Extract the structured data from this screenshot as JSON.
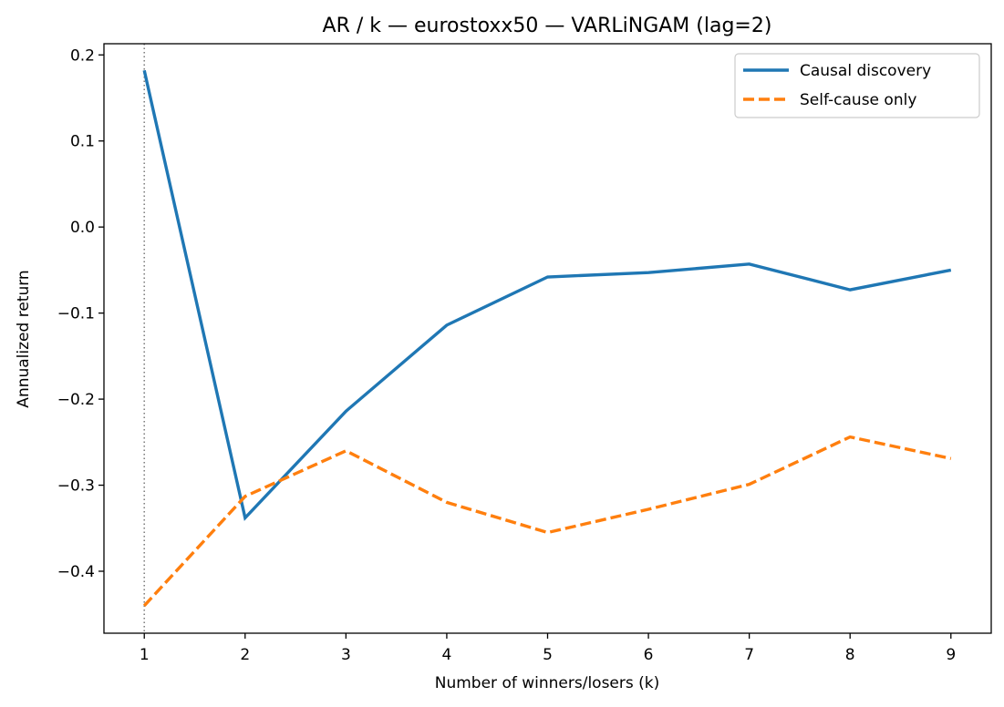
{
  "chart_data": {
    "type": "line",
    "title": "AR / k — eurostoxx50 — VARLiNGAM (lag=2)",
    "xlabel": "Number of winners/losers (k)",
    "ylabel": "Annualized return",
    "x": [
      1,
      2,
      3,
      4,
      5,
      6,
      7,
      8,
      9
    ],
    "xlim": [
      0.6,
      9.4
    ],
    "ylim": [
      -0.472,
      0.213
    ],
    "xticks": [
      "1",
      "2",
      "3",
      "4",
      "5",
      "6",
      "7",
      "8",
      "9"
    ],
    "yticks": [
      {
        "value": 0.2,
        "label": "0.2"
      },
      {
        "value": 0.1,
        "label": "0.1"
      },
      {
        "value": 0.0,
        "label": "0.0"
      },
      {
        "value": -0.1,
        "label": "−0.1"
      },
      {
        "value": -0.2,
        "label": "−0.2"
      },
      {
        "value": -0.3,
        "label": "−0.3"
      },
      {
        "value": -0.4,
        "label": "−0.4"
      }
    ],
    "vline_x": 1,
    "grid": false,
    "legend_position": "top-right",
    "series": [
      {
        "name": "Causal discovery",
        "color": "#1f77b4",
        "style": "solid",
        "values": [
          0.182,
          -0.338,
          -0.214,
          -0.114,
          -0.058,
          -0.053,
          -0.043,
          -0.073,
          -0.05
        ]
      },
      {
        "name": "Self-cause only",
        "color": "#ff7f0e",
        "style": "dashed",
        "values": [
          -0.44,
          -0.313,
          -0.26,
          -0.32,
          -0.355,
          -0.328,
          -0.299,
          -0.244,
          -0.269
        ]
      }
    ]
  }
}
